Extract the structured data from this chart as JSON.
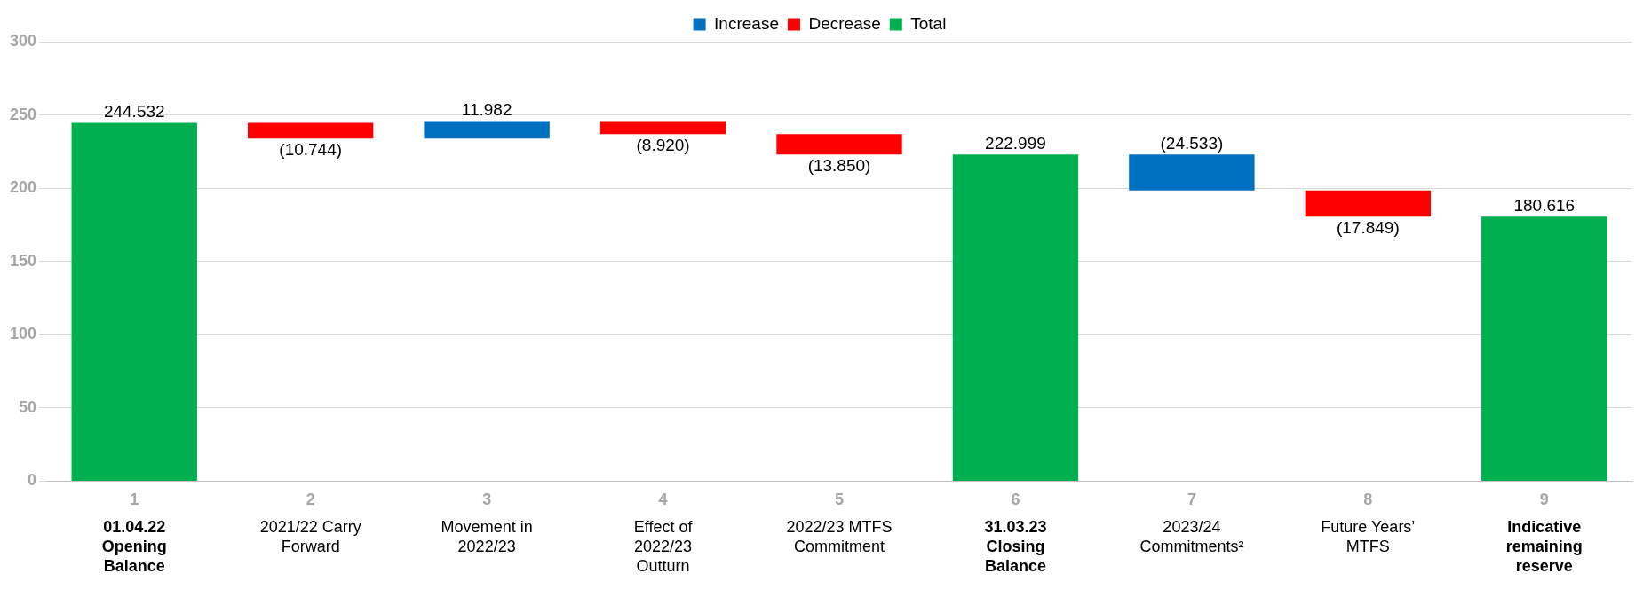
{
  "chart_data": {
    "type": "bar",
    "categories": [
      "1",
      "2",
      "3",
      "4",
      "5",
      "6",
      "7",
      "8",
      "9"
    ],
    "series": [
      {
        "name": "Increase",
        "color": "#0070c0",
        "values": [
          null,
          null,
          11.982,
          null,
          null,
          null,
          24.533,
          null,
          null
        ],
        "base": [
          null,
          null,
          233.788,
          null,
          null,
          null,
          198.466,
          null,
          null
        ],
        "value_labels": [
          null,
          null,
          "11.982",
          null,
          null,
          null,
          "(24.533)",
          null,
          null
        ]
      },
      {
        "name": "Decrease",
        "color": "#ff0000",
        "values": [
          null,
          10.744,
          null,
          8.92,
          13.85,
          null,
          null,
          17.849,
          null
        ],
        "base": [
          null,
          233.788,
          null,
          236.85,
          223.0,
          null,
          null,
          180.617,
          null
        ],
        "value_labels": [
          null,
          "(10.744)",
          null,
          "(8.920)",
          "(13.850)",
          null,
          null,
          "(17.849)",
          null
        ]
      },
      {
        "name": "Total",
        "color": "#00b050",
        "values": [
          244.532,
          null,
          null,
          null,
          null,
          222.999,
          null,
          null,
          180.616
        ],
        "base": [
          0,
          null,
          null,
          null,
          null,
          0,
          null,
          null,
          0
        ],
        "value_labels": [
          "244.532",
          null,
          null,
          null,
          null,
          "222.999",
          null,
          null,
          "180.616"
        ]
      }
    ],
    "ylim": [
      0,
      300
    ],
    "yticks": [
      0,
      50,
      100,
      150,
      200,
      250,
      300
    ],
    "grid": "y",
    "legend": "top",
    "annotations": [
      "01.04.22 Opening Balance",
      "2021/22 Carry Forward",
      "Movement in 2022/23",
      "Effect of 2022/23 Outturn",
      "2022/23 MTFS Commitment",
      "31.03.23 Closing Balance",
      "2023/24 Commitments²",
      "Future Years’ MTFS",
      "Indicative remaining reserve"
    ]
  }
}
